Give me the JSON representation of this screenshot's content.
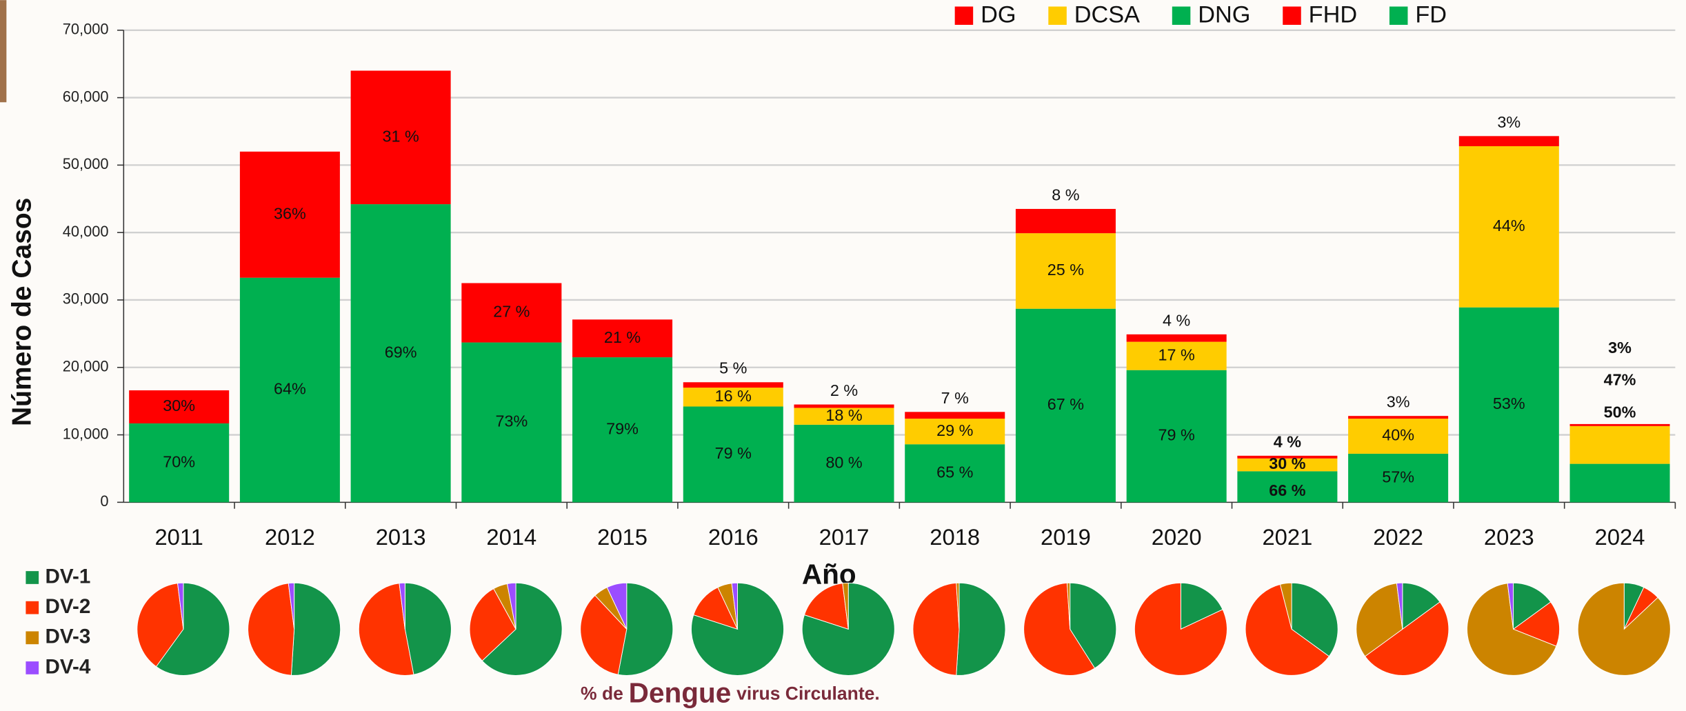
{
  "chart_data": {
    "type": "bar",
    "stacked": true,
    "xlabel": "Año",
    "ylabel": "Número de Casos",
    "categories": [
      "2011",
      "2012",
      "2013",
      "2014",
      "2015",
      "2016",
      "2017",
      "2018",
      "2019",
      "2020",
      "2021",
      "2022",
      "2023",
      "2024"
    ],
    "series": [
      {
        "name": "DG",
        "color": "#ff0000",
        "values": [
          null,
          null,
          null,
          null,
          null,
          800,
          500,
          1000,
          3600,
          1100,
          400,
          400,
          1500,
          300
        ],
        "shares": [
          null,
          null,
          null,
          null,
          null,
          5,
          2,
          7,
          8,
          4,
          4,
          3,
          3,
          3
        ],
        "share_labels": [
          null,
          null,
          null,
          null,
          null,
          "5 %",
          "2 %",
          "7 %",
          "8 %",
          "4 %",
          "4 %",
          "3%",
          "3%",
          "3%"
        ]
      },
      {
        "name": "DCSA",
        "color": "#ffcc00",
        "values": [
          null,
          null,
          null,
          null,
          null,
          2800,
          2500,
          3800,
          11200,
          4200,
          1900,
          5200,
          23900,
          5600
        ],
        "shares": [
          null,
          null,
          null,
          null,
          null,
          16,
          18,
          29,
          25,
          17,
          30,
          40,
          44,
          47
        ],
        "share_labels": [
          null,
          null,
          null,
          null,
          null,
          "16 %",
          "18 %",
          "29 %",
          "25 %",
          "17 %",
          "30 %",
          "40%",
          "44%",
          "47%"
        ]
      },
      {
        "name": "DNG",
        "color": "#00b050",
        "values": [
          null,
          null,
          null,
          null,
          null,
          14200,
          11500,
          8600,
          28700,
          19600,
          4600,
          7200,
          28900,
          5700
        ],
        "shares": [
          null,
          null,
          null,
          null,
          null,
          79,
          80,
          65,
          67,
          79,
          66,
          57,
          53,
          50
        ],
        "share_labels": [
          null,
          null,
          null,
          null,
          null,
          "79 %",
          "80 %",
          "65 %",
          "67 %",
          "79 %",
          "66 %",
          "57%",
          "53%",
          "50%"
        ]
      },
      {
        "name": "FHD",
        "color": "#ff0000",
        "values": [
          4900,
          18700,
          19800,
          8800,
          5600,
          null,
          null,
          null,
          null,
          null,
          null,
          null,
          null,
          null
        ],
        "shares": [
          30,
          36,
          31,
          27,
          21,
          null,
          null,
          null,
          null,
          null,
          null,
          null,
          null,
          null
        ],
        "share_labels": [
          "30%",
          "36%",
          "31 %",
          "27 %",
          "21 %",
          null,
          null,
          null,
          null,
          null,
          null,
          null,
          null,
          null
        ]
      },
      {
        "name": "FD",
        "color": "#00b050",
        "values": [
          11700,
          33300,
          44200,
          23700,
          21500,
          null,
          null,
          null,
          null,
          null,
          null,
          null,
          null,
          null
        ],
        "shares": [
          70,
          64,
          69,
          73,
          79,
          null,
          null,
          null,
          null,
          null,
          null,
          null,
          null,
          null
        ],
        "share_labels": [
          "70%",
          "64%",
          "69%",
          "73%",
          "79%",
          null,
          null,
          null,
          null,
          null,
          null,
          null,
          null,
          null
        ]
      }
    ],
    "ylim": [
      0,
      70000
    ],
    "yticks": [
      0,
      {
        "value": 10000,
        "label": "10,000"
      },
      {
        "value": 20000,
        "label": "20,000"
      },
      {
        "value": 30000,
        "label": "30,000"
      },
      {
        "value": 40000,
        "label": "40,000"
      },
      {
        "value": 50000,
        "label": "50,000"
      },
      {
        "value": 60000,
        "label": "60,000"
      },
      {
        "value": 70000,
        "label": "70,000"
      }
    ],
    "grid": true,
    "legend": "top-right",
    "serotypes": {
      "type": "pie",
      "caption": [
        "% de",
        "Dengue",
        "virus Circulante."
      ],
      "series": [
        {
          "name": "DV-1",
          "color": "#13944a",
          "values": [
            60,
            51,
            47,
            63,
            53,
            80,
            80,
            51,
            41,
            18,
            35,
            15,
            15,
            7
          ]
        },
        {
          "name": "DV-2",
          "color": "#ff3300",
          "values": [
            38,
            47,
            51,
            29,
            35,
            13,
            18,
            48,
            58,
            82,
            61,
            50,
            16,
            6
          ]
        },
        {
          "name": "DV-3",
          "color": "#cc8400",
          "values": [
            0,
            0,
            0,
            5,
            5,
            5,
            2,
            1,
            1,
            0,
            4,
            33,
            67,
            87
          ]
        },
        {
          "name": "DV-4",
          "color": "#9b4dff",
          "values": [
            2,
            2,
            2,
            3,
            7,
            2,
            0,
            0,
            0,
            0,
            0,
            2,
            2,
            0
          ]
        }
      ]
    }
  }
}
